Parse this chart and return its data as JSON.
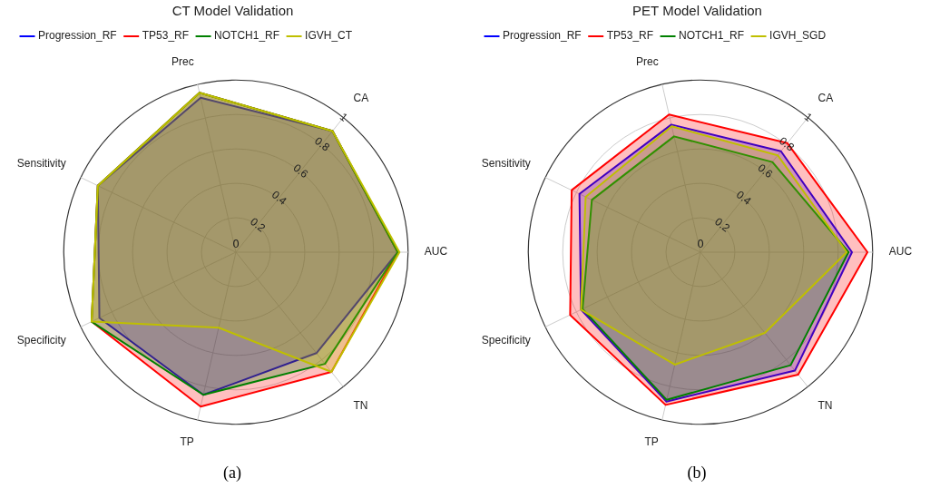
{
  "chart_data": [
    {
      "type": "radar",
      "title": "CT Model Validation",
      "categories": [
        "CA",
        "AUC",
        "TN",
        "TP",
        "Specificity",
        "Sensitivity",
        "Prec"
      ],
      "ylim": [
        0,
        1
      ],
      "yticks": [
        0,
        0.2,
        0.4,
        0.6,
        0.8,
        1
      ],
      "grid": true,
      "legend": "top left",
      "marker": "none",
      "annotations": [
        "(a)"
      ],
      "series": [
        {
          "name": "Progression_RF",
          "color": "#0000ff",
          "values": [
            0.9,
            0.94,
            0.75,
            0.85,
            0.88,
            0.89,
            0.92
          ]
        },
        {
          "name": "TP53_RF",
          "color": "#ff0000",
          "values": [
            0.9,
            0.94,
            0.89,
            0.92,
            0.93,
            0.89,
            0.95
          ]
        },
        {
          "name": "NOTCH1_RF",
          "color": "#008000",
          "values": [
            0.9,
            0.94,
            0.83,
            0.85,
            0.93,
            0.89,
            0.95
          ]
        },
        {
          "name": "IGVH_CT",
          "color": "#bfbf00",
          "values": [
            0.9,
            0.95,
            0.89,
            0.45,
            0.93,
            0.89,
            0.95
          ]
        }
      ]
    },
    {
      "type": "radar",
      "title": "PET Model Validation",
      "categories": [
        "CA",
        "AUC",
        "TN",
        "TP",
        "Specificity",
        "Sensitivity",
        "Prec"
      ],
      "ylim": [
        0,
        1
      ],
      "yticks": [
        0,
        0.2,
        0.4,
        0.6,
        0.8,
        1
      ],
      "grid": true,
      "legend": "top left",
      "marker": "none",
      "annotations": [
        "(b)"
      ],
      "series": [
        {
          "name": "Progression_RF",
          "color": "#0000ff",
          "values": [
            0.75,
            0.88,
            0.88,
            0.89,
            0.77,
            0.78,
            0.76
          ]
        },
        {
          "name": "TP53_RF",
          "color": "#ff0000",
          "values": [
            0.81,
            0.97,
            0.91,
            0.91,
            0.84,
            0.83,
            0.82
          ]
        },
        {
          "name": "NOTCH1_RF",
          "color": "#008000",
          "values": [
            0.67,
            0.86,
            0.84,
            0.88,
            0.76,
            0.7,
            0.69
          ]
        },
        {
          "name": "IGVH_SGD",
          "color": "#bfbf00",
          "values": [
            0.72,
            0.85,
            0.6,
            0.67,
            0.77,
            0.74,
            0.75
          ]
        }
      ]
    }
  ]
}
